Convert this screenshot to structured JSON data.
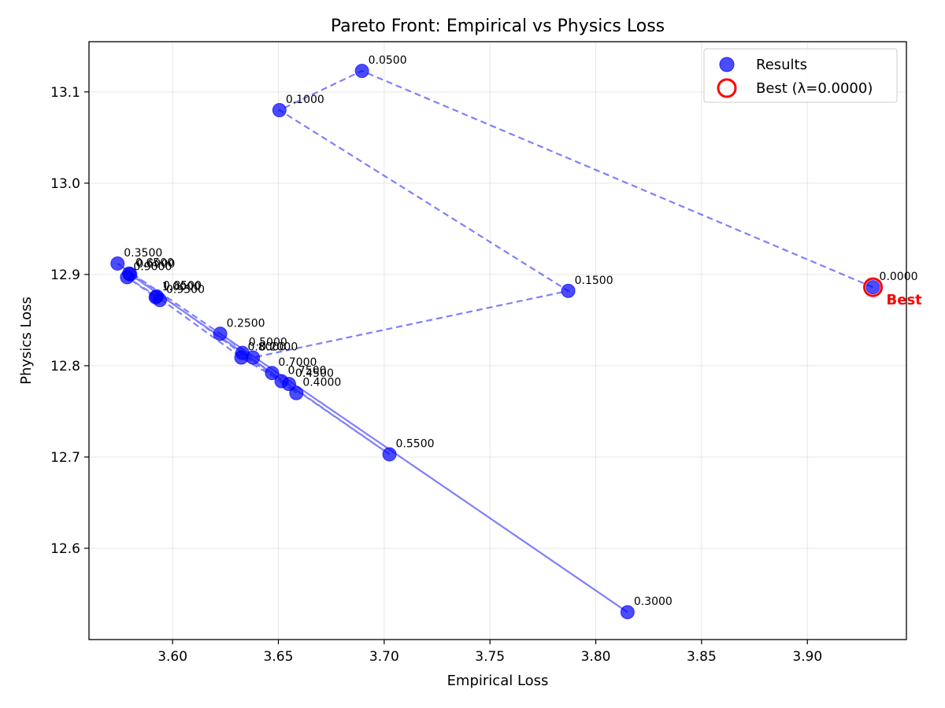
{
  "chart_data": {
    "type": "scatter",
    "title": "Pareto Front: Empirical vs Physics Loss",
    "xlabel": "Empirical Loss",
    "ylabel": "Physics Loss",
    "xlim": [
      3.5605,
      3.9468
    ],
    "ylim": [
      12.5,
      13.155
    ],
    "xticks": [
      3.6,
      3.65,
      3.7,
      3.75,
      3.8,
      3.85,
      3.9
    ],
    "xtick_labels": [
      "3.60",
      "3.65",
      "3.70",
      "3.75",
      "3.80",
      "3.85",
      "3.90"
    ],
    "yticks": [
      12.6,
      12.7,
      12.8,
      12.9,
      13.0,
      13.1
    ],
    "ytick_labels": [
      "12.6",
      "12.7",
      "12.8",
      "12.9",
      "13.0",
      "13.1"
    ],
    "grid": true,
    "legend_position": "top-right",
    "colors": {
      "points": "#0000ff",
      "line": "#0000ff",
      "best": "#ff0000"
    },
    "series": [
      {
        "name": "Results",
        "points": [
          {
            "x": 3.931,
            "y": 12.886,
            "label": "0.0000"
          },
          {
            "x": 3.6895,
            "y": 13.123,
            "label": "0.0500"
          },
          {
            "x": 3.6505,
            "y": 13.08,
            "label": "0.1000"
          },
          {
            "x": 3.787,
            "y": 12.882,
            "label": "0.1500"
          },
          {
            "x": 3.638,
            "y": 12.809,
            "label": "0.2000"
          },
          {
            "x": 3.6225,
            "y": 12.835,
            "label": "0.2500"
          },
          {
            "x": 3.815,
            "y": 12.53,
            "label": "0.3000"
          },
          {
            "x": 3.574,
            "y": 12.912,
            "label": "0.3500"
          },
          {
            "x": 3.6585,
            "y": 12.77,
            "label": "0.4000"
          },
          {
            "x": 3.655,
            "y": 12.78,
            "label": "0.4500"
          },
          {
            "x": 3.633,
            "y": 12.814,
            "label": "0.5000"
          },
          {
            "x": 3.7025,
            "y": 12.703,
            "label": "0.5500"
          },
          {
            "x": 3.58,
            "y": 12.9,
            "label": "0.6000"
          },
          {
            "x": 3.5795,
            "y": 12.901,
            "label": "0.6500"
          },
          {
            "x": 3.647,
            "y": 12.792,
            "label": "0.7000"
          },
          {
            "x": 3.6515,
            "y": 12.783,
            "label": "0.7500"
          },
          {
            "x": 3.6325,
            "y": 12.809,
            "label": "0.8000"
          },
          {
            "x": 3.5925,
            "y": 12.876,
            "label": "0.8500"
          },
          {
            "x": 3.5785,
            "y": 12.897,
            "label": "0.9000"
          },
          {
            "x": 3.594,
            "y": 12.872,
            "label": "0.9500"
          },
          {
            "x": 3.592,
            "y": 12.875,
            "label": "1.0000"
          }
        ]
      }
    ],
    "best": {
      "x": 3.931,
      "y": 12.886,
      "label": "Best"
    },
    "legend": [
      {
        "label": "Results",
        "marker": "filled-circle"
      },
      {
        "label": "Best (λ=0.0000)",
        "marker": "ring"
      }
    ]
  }
}
